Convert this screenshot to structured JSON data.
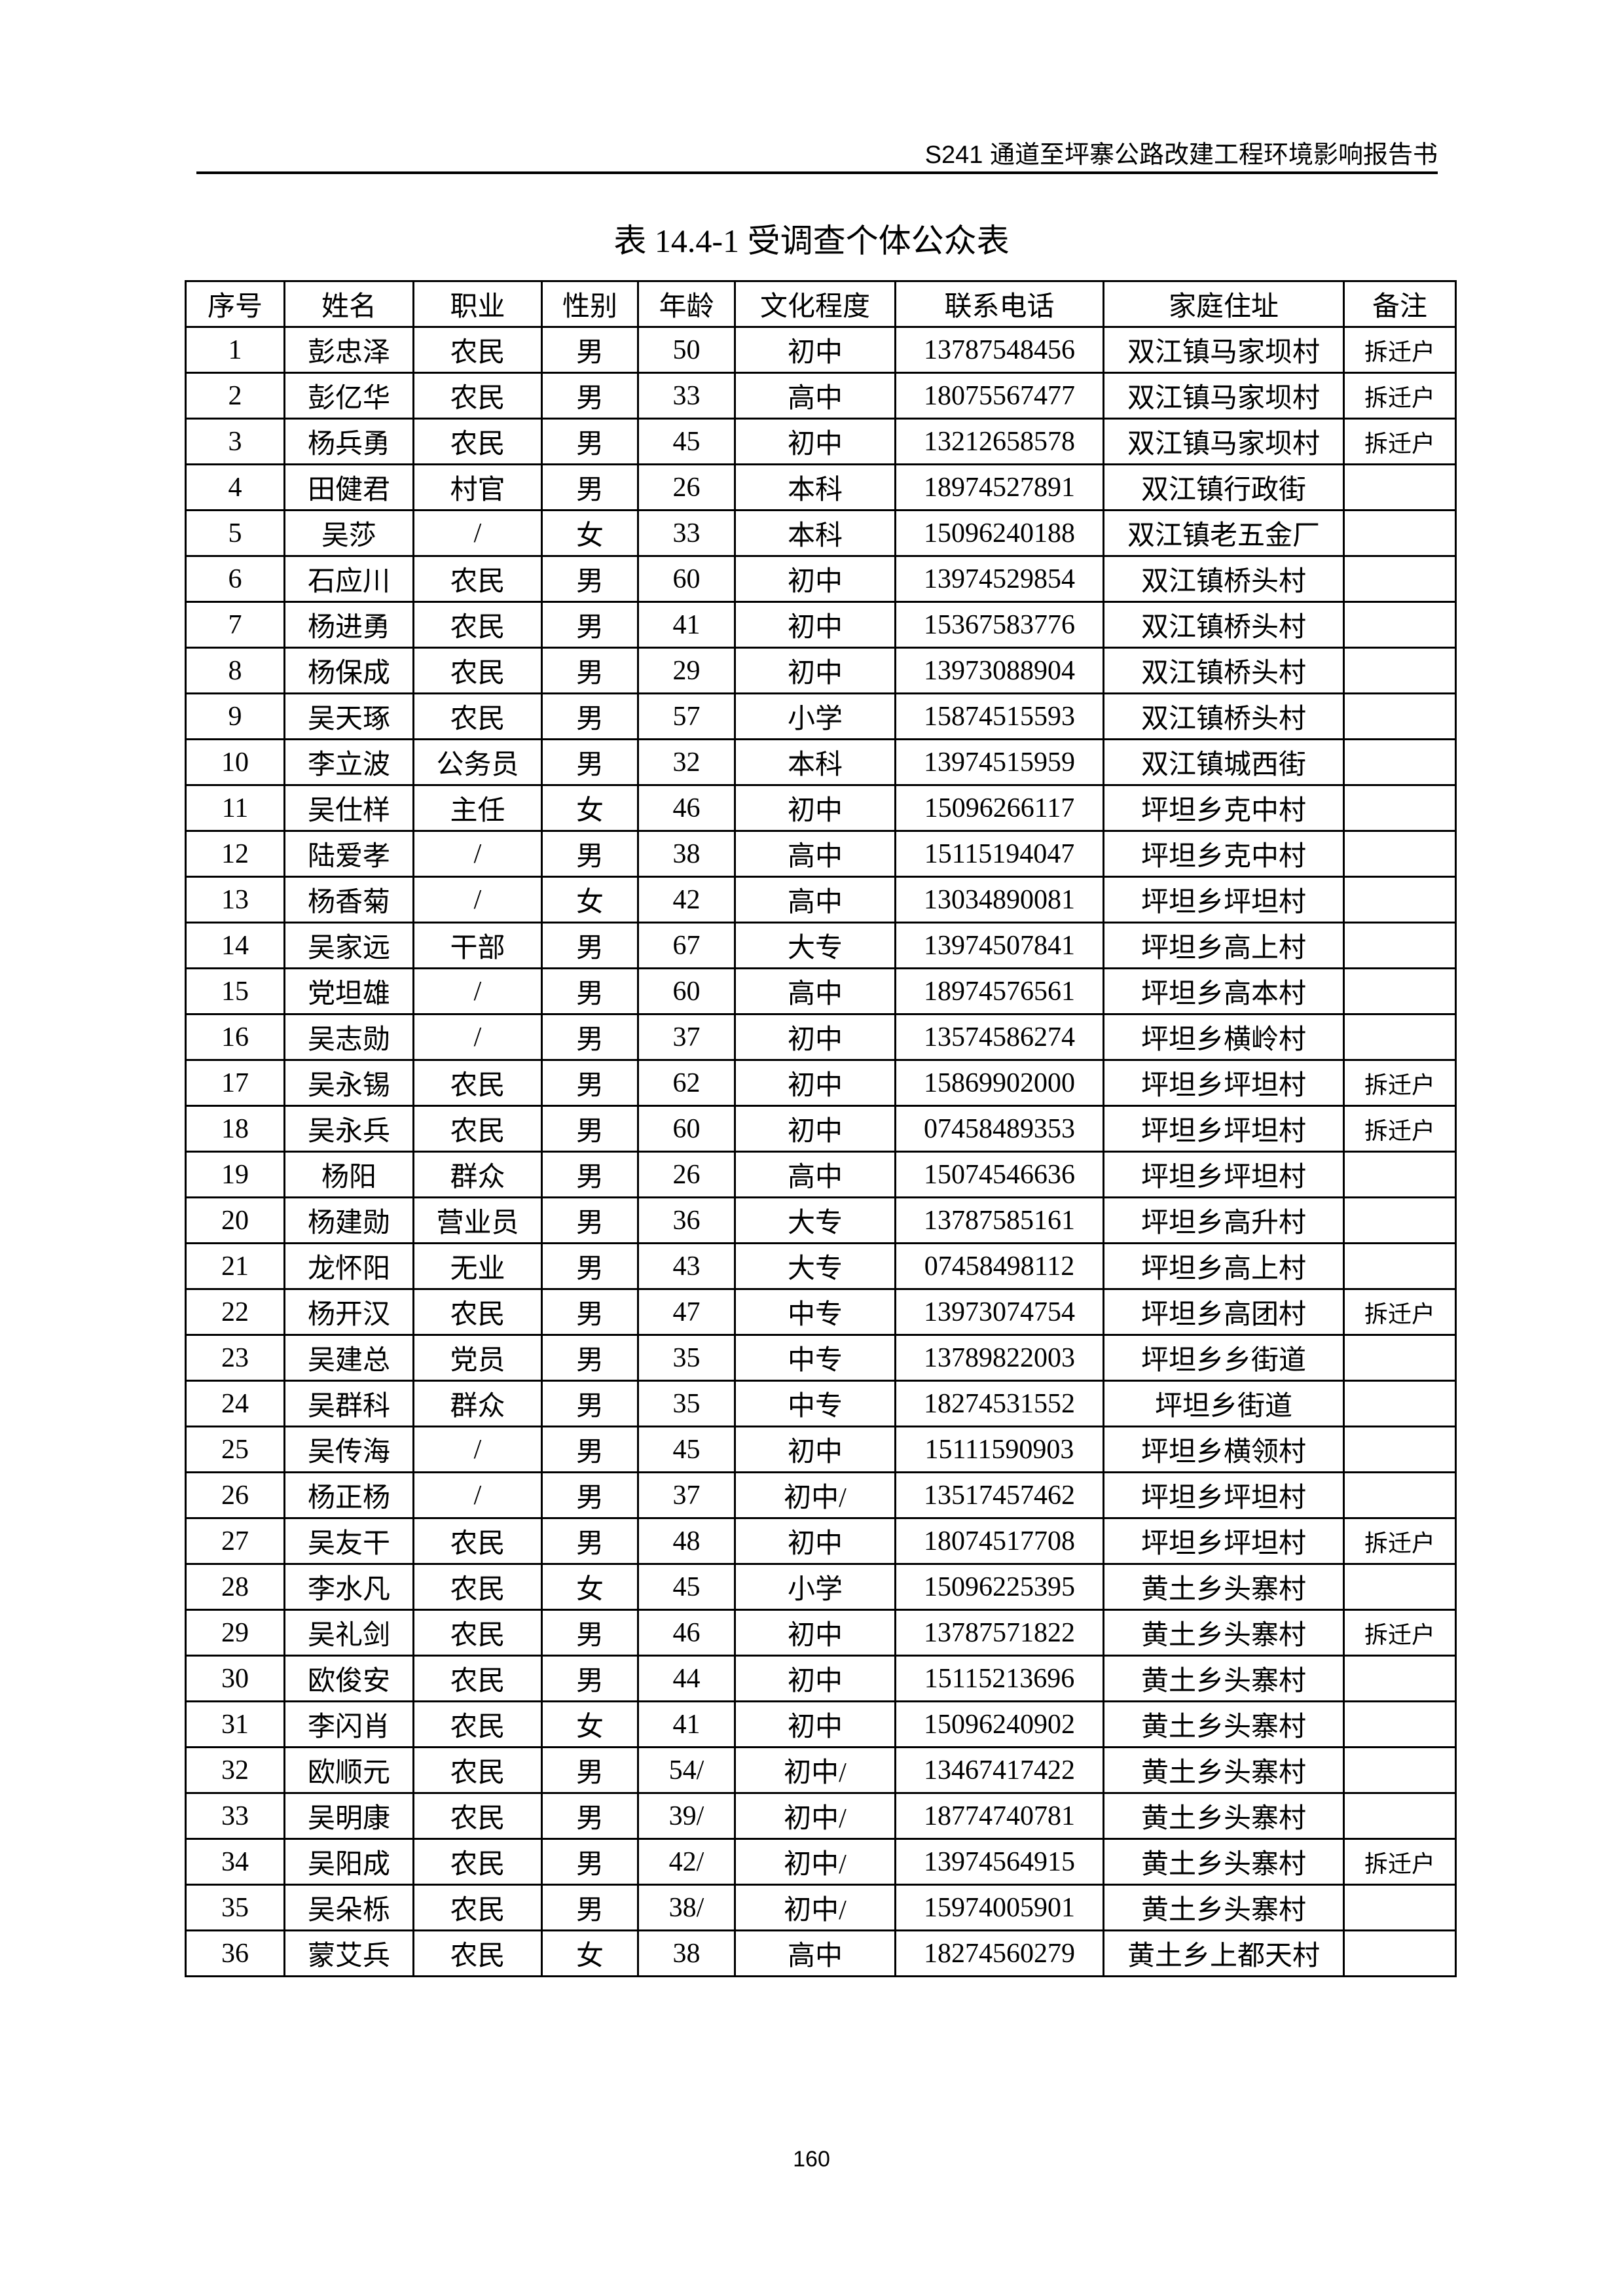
{
  "running_header": "S241 通道至坪寨公路改建工程环境影响报告书",
  "title": "表 14.4-1 受调查个体公众表",
  "columns": [
    "序号",
    "姓名",
    "职业",
    "性别",
    "年龄",
    "文化程度",
    "联系电话",
    "家庭住址",
    "备注"
  ],
  "rows": [
    [
      "1",
      "彭忠泽",
      "农民",
      "男",
      "50",
      "初中",
      "13787548456",
      "双江镇马家坝村",
      "拆迁户"
    ],
    [
      "2",
      "彭亿华",
      "农民",
      "男",
      "33",
      "高中",
      "18075567477",
      "双江镇马家坝村",
      "拆迁户"
    ],
    [
      "3",
      "杨兵勇",
      "农民",
      "男",
      "45",
      "初中",
      "13212658578",
      "双江镇马家坝村",
      "拆迁户"
    ],
    [
      "4",
      "田健君",
      "村官",
      "男",
      "26",
      "本科",
      "18974527891",
      "双江镇行政街",
      ""
    ],
    [
      "5",
      "吴莎",
      "/",
      "女",
      "33",
      "本科",
      "15096240188",
      "双江镇老五金厂",
      ""
    ],
    [
      "6",
      "石应川",
      "农民",
      "男",
      "60",
      "初中",
      "13974529854",
      "双江镇桥头村",
      ""
    ],
    [
      "7",
      "杨进勇",
      "农民",
      "男",
      "41",
      "初中",
      "15367583776",
      "双江镇桥头村",
      ""
    ],
    [
      "8",
      "杨保成",
      "农民",
      "男",
      "29",
      "初中",
      "13973088904",
      "双江镇桥头村",
      ""
    ],
    [
      "9",
      "吴天琢",
      "农民",
      "男",
      "57",
      "小学",
      "15874515593",
      "双江镇桥头村",
      ""
    ],
    [
      "10",
      "李立波",
      "公务员",
      "男",
      "32",
      "本科",
      "13974515959",
      "双江镇城西街",
      ""
    ],
    [
      "11",
      "吴仕样",
      "主任",
      "女",
      "46",
      "初中",
      "15096266117",
      "坪坦乡克中村",
      ""
    ],
    [
      "12",
      "陆爱孝",
      "/",
      "男",
      "38",
      "高中",
      "15115194047",
      "坪坦乡克中村",
      ""
    ],
    [
      "13",
      "杨香菊",
      "/",
      "女",
      "42",
      "高中",
      "13034890081",
      "坪坦乡坪坦村",
      ""
    ],
    [
      "14",
      "吴家远",
      "干部",
      "男",
      "67",
      "大专",
      "13974507841",
      "坪坦乡高上村",
      ""
    ],
    [
      "15",
      "党坦雄",
      "/",
      "男",
      "60",
      "高中",
      "18974576561",
      "坪坦乡高本村",
      ""
    ],
    [
      "16",
      "吴志勋",
      "/",
      "男",
      "37",
      "初中",
      "13574586274",
      "坪坦乡横岭村",
      ""
    ],
    [
      "17",
      "吴永锡",
      "农民",
      "男",
      "62",
      "初中",
      "15869902000",
      "坪坦乡坪坦村",
      "拆迁户"
    ],
    [
      "18",
      "吴永兵",
      "农民",
      "男",
      "60",
      "初中",
      "07458489353",
      "坪坦乡坪坦村",
      "拆迁户"
    ],
    [
      "19",
      "杨阳",
      "群众",
      "男",
      "26",
      "高中",
      "15074546636",
      "坪坦乡坪坦村",
      ""
    ],
    [
      "20",
      "杨建勋",
      "营业员",
      "男",
      "36",
      "大专",
      "13787585161",
      "坪坦乡高升村",
      ""
    ],
    [
      "21",
      "龙怀阳",
      "无业",
      "男",
      "43",
      "大专",
      "07458498112",
      "坪坦乡高上村",
      ""
    ],
    [
      "22",
      "杨开汉",
      "农民",
      "男",
      "47",
      "中专",
      "13973074754",
      "坪坦乡高团村",
      "拆迁户"
    ],
    [
      "23",
      "吴建总",
      "党员",
      "男",
      "35",
      "中专",
      "13789822003",
      "坪坦乡乡街道",
      ""
    ],
    [
      "24",
      "吴群科",
      "群众",
      "男",
      "35",
      "中专",
      "18274531552",
      "坪坦乡街道",
      ""
    ],
    [
      "25",
      "吴传海",
      "/",
      "男",
      "45",
      "初中",
      "15111590903",
      "坪坦乡横领村",
      ""
    ],
    [
      "26",
      "杨正杨",
      "/",
      "男",
      "37",
      "初中/",
      "13517457462",
      "坪坦乡坪坦村",
      ""
    ],
    [
      "27",
      "吴友干",
      "农民",
      "男",
      "48",
      "初中",
      "18074517708",
      "坪坦乡坪坦村",
      "拆迁户"
    ],
    [
      "28",
      "李水凡",
      "农民",
      "女",
      "45",
      "小学",
      "15096225395",
      "黄土乡头寨村",
      ""
    ],
    [
      "29",
      "吴礼剑",
      "农民",
      "男",
      "46",
      "初中",
      "13787571822",
      "黄土乡头寨村",
      "拆迁户"
    ],
    [
      "30",
      "欧俊安",
      "农民",
      "男",
      "44",
      "初中",
      "15115213696",
      "黄土乡头寨村",
      ""
    ],
    [
      "31",
      "李闪肖",
      "农民",
      "女",
      "41",
      "初中",
      "15096240902",
      "黄土乡头寨村",
      ""
    ],
    [
      "32",
      "欧顺元",
      "农民",
      "男",
      "54/",
      "初中/",
      "13467417422",
      "黄土乡头寨村",
      ""
    ],
    [
      "33",
      "吴明康",
      "农民",
      "男",
      "39/",
      "初中/",
      "18774740781",
      "黄土乡头寨村",
      ""
    ],
    [
      "34",
      "吴阳成",
      "农民",
      "男",
      "42/",
      "初中/",
      "13974564915",
      "黄土乡头寨村",
      "拆迁户"
    ],
    [
      "35",
      "吴朵栎",
      "农民",
      "男",
      "38/",
      "初中/",
      "15974005901",
      "黄土乡头寨村",
      ""
    ],
    [
      "36",
      "蒙艾兵",
      "农民",
      "女",
      "38",
      "高中",
      "18274560279",
      "黄土乡上都天村",
      ""
    ]
  ],
  "page_number": "160"
}
